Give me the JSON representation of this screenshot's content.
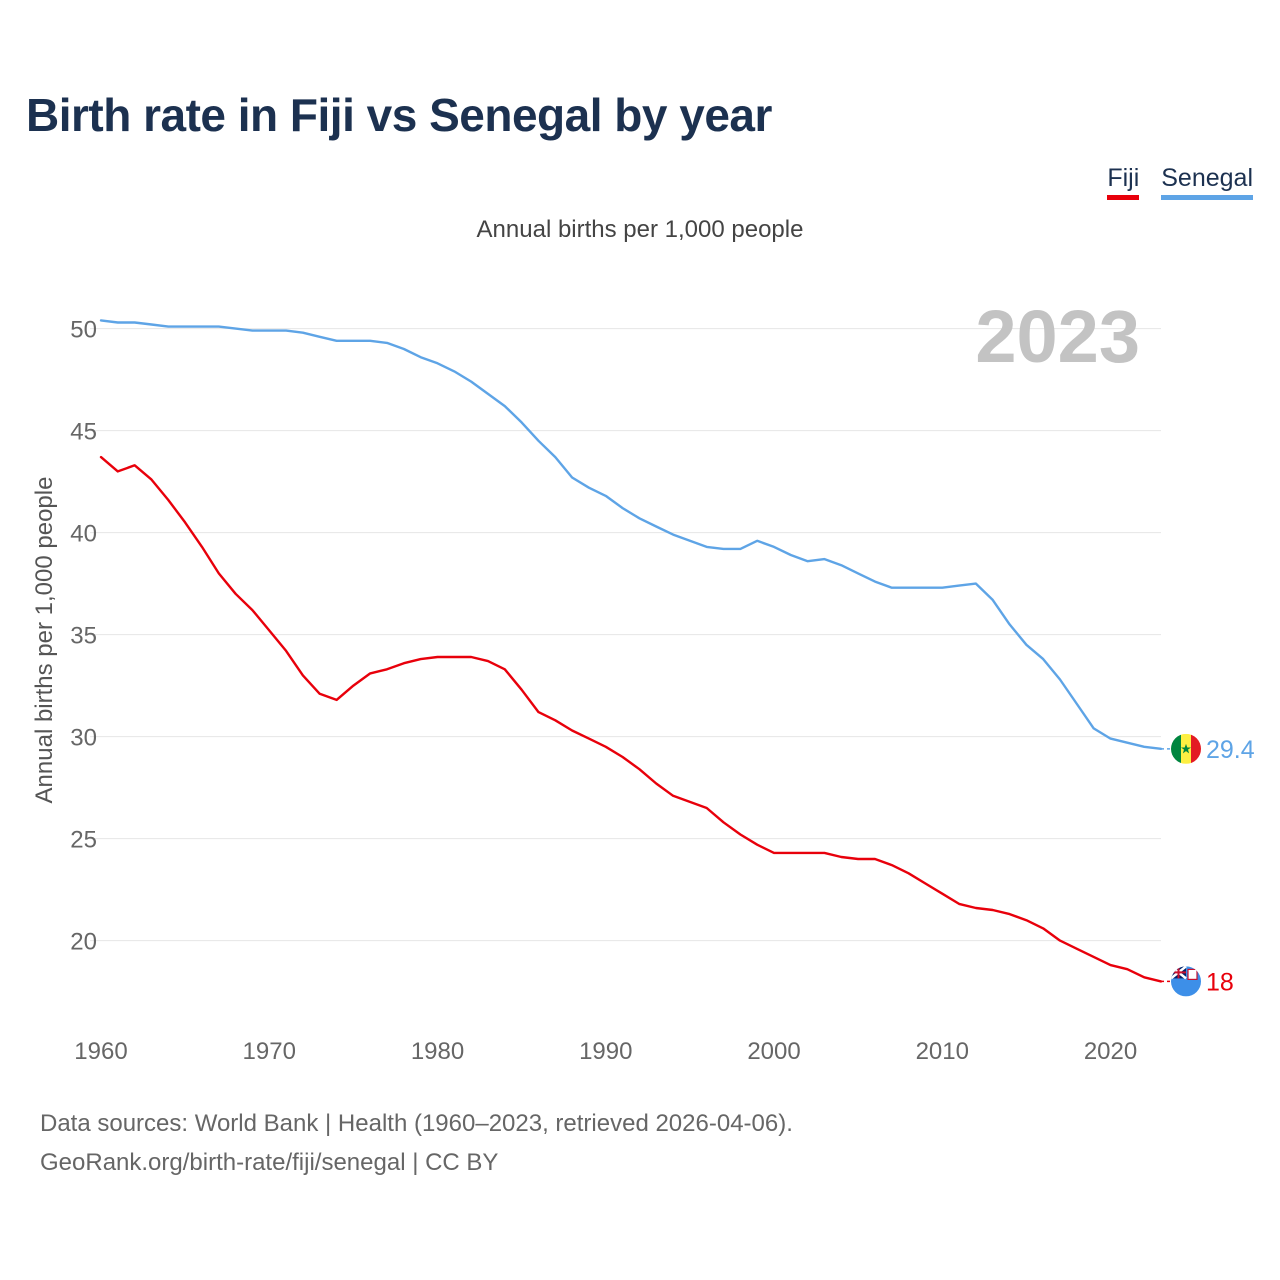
{
  "title": "Birth rate in Fiji vs Senegal by year",
  "subtitle": "Annual births per 1,000 people",
  "legend": [
    {
      "name": "Fiji",
      "color": "#e8000b"
    },
    {
      "name": "Senegal",
      "color": "#5ea4e6"
    }
  ],
  "year_watermark": "2023",
  "footer": {
    "line1": "Data sources: World Bank | Health (1960–2023, retrieved 2026-04-06).",
    "line2": "GeoRank.org/birth-rate/fiji/senegal | CC BY"
  },
  "chart_data": {
    "type": "line",
    "title": "Birth rate in Fiji vs Senegal by year",
    "ylabel": "Annual births per 1,000 people",
    "xlabel": "",
    "xlim": [
      1960,
      2023
    ],
    "ylim": [
      16.5,
      51.5
    ],
    "x_ticks": [
      1960,
      1970,
      1980,
      1990,
      2000,
      2010,
      2020
    ],
    "y_ticks": [
      20,
      25,
      30,
      35,
      40,
      45,
      50
    ],
    "grid": true,
    "series": [
      {
        "name": "Fiji",
        "color": "#e8000b",
        "end_label": "18",
        "x": [
          1960,
          1961,
          1962,
          1963,
          1964,
          1965,
          1966,
          1967,
          1968,
          1969,
          1970,
          1971,
          1972,
          1973,
          1974,
          1975,
          1976,
          1977,
          1978,
          1979,
          1980,
          1981,
          1982,
          1983,
          1984,
          1985,
          1986,
          1987,
          1988,
          1989,
          1990,
          1991,
          1992,
          1993,
          1994,
          1995,
          1996,
          1997,
          1998,
          1999,
          2000,
          2001,
          2002,
          2003,
          2004,
          2005,
          2006,
          2007,
          2008,
          2009,
          2010,
          2011,
          2012,
          2013,
          2014,
          2015,
          2016,
          2017,
          2018,
          2019,
          2020,
          2021,
          2022,
          2023
        ],
        "values": [
          43.7,
          43.0,
          43.3,
          42.6,
          41.6,
          40.5,
          39.3,
          38.0,
          37.0,
          36.2,
          35.2,
          34.2,
          33.0,
          32.1,
          31.8,
          32.5,
          33.1,
          33.3,
          33.6,
          33.8,
          33.9,
          33.9,
          33.9,
          33.7,
          33.3,
          32.3,
          31.2,
          30.8,
          30.3,
          29.9,
          29.5,
          29.0,
          28.4,
          27.7,
          27.1,
          26.8,
          26.5,
          25.8,
          25.2,
          24.7,
          24.3,
          24.3,
          24.3,
          24.3,
          24.1,
          24.0,
          24.0,
          23.7,
          23.3,
          22.8,
          22.3,
          21.8,
          21.6,
          21.5,
          21.3,
          21.0,
          20.6,
          20.0,
          19.6,
          19.2,
          18.8,
          18.6,
          18.2,
          18.0
        ]
      },
      {
        "name": "Senegal",
        "color": "#5ea4e6",
        "end_label": "29.4",
        "x": [
          1960,
          1961,
          1962,
          1963,
          1964,
          1965,
          1966,
          1967,
          1968,
          1969,
          1970,
          1971,
          1972,
          1973,
          1974,
          1975,
          1976,
          1977,
          1978,
          1979,
          1980,
          1981,
          1982,
          1983,
          1984,
          1985,
          1986,
          1987,
          1988,
          1989,
          1990,
          1991,
          1992,
          1993,
          1994,
          1995,
          1996,
          1997,
          1998,
          1999,
          2000,
          2001,
          2002,
          2003,
          2004,
          2005,
          2006,
          2007,
          2008,
          2009,
          2010,
          2011,
          2012,
          2013,
          2014,
          2015,
          2016,
          2017,
          2018,
          2019,
          2020,
          2021,
          2022,
          2023
        ],
        "values": [
          50.4,
          50.3,
          50.3,
          50.2,
          50.1,
          50.1,
          50.1,
          50.1,
          50.0,
          49.9,
          49.9,
          49.9,
          49.8,
          49.6,
          49.4,
          49.4,
          49.4,
          49.3,
          49.0,
          48.6,
          48.3,
          47.9,
          47.4,
          46.8,
          46.2,
          45.4,
          44.5,
          43.7,
          42.7,
          42.2,
          41.8,
          41.2,
          40.7,
          40.3,
          39.9,
          39.6,
          39.3,
          39.2,
          39.2,
          39.6,
          39.3,
          38.9,
          38.6,
          38.7,
          38.4,
          38.0,
          37.6,
          37.3,
          37.3,
          37.3,
          37.3,
          37.4,
          37.5,
          36.7,
          35.5,
          34.5,
          33.8,
          32.8,
          31.6,
          30.4,
          29.9,
          29.7,
          29.5,
          29.4
        ]
      }
    ]
  }
}
